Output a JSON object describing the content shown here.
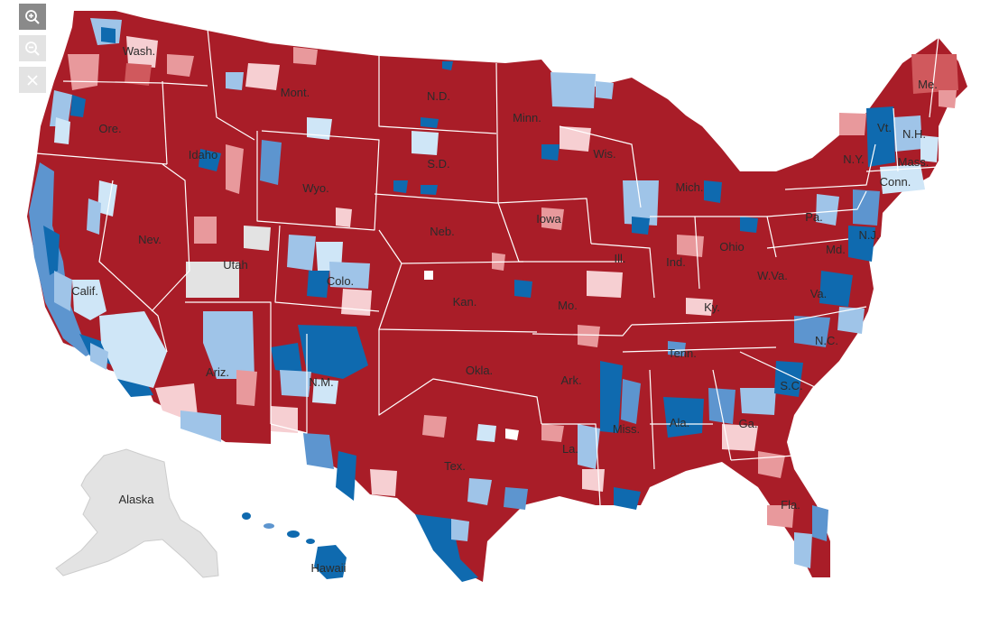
{
  "controls": {
    "zoom_in_icon": "zoom-in-magnifier-plus",
    "zoom_out_icon": "zoom-out-magnifier-minus",
    "reset_icon": "close-x"
  },
  "colors": {
    "strong_republican": "#a91d28",
    "republican": "#d0595d",
    "lean_republican": "#e8999c",
    "slight_republican": "#f6cfd2",
    "slight_democrat": "#cfe6f7",
    "lean_democrat": "#9fc4e8",
    "democrat": "#5d95cf",
    "strong_democrat": "#0f6aaf",
    "no_data": "#e3e3e3",
    "border": "#ffffff"
  },
  "states": {
    "wash": "Wash.",
    "ore": "Ore.",
    "calif": "Calif.",
    "nev": "Nev.",
    "idaho": "Idaho",
    "mont": "Mont.",
    "wyo": "Wyo.",
    "utah": "Utah",
    "colo": "Colo.",
    "ariz": "Ariz.",
    "nm": "N.M.",
    "nd": "N.D.",
    "sd": "S.D.",
    "neb": "Neb.",
    "kan": "Kan.",
    "okla": "Okla.",
    "tex": "Tex.",
    "minn": "Minn.",
    "iowa": "Iowa",
    "mo": "Mo.",
    "ark": "Ark.",
    "la": "La.",
    "wis": "Wis.",
    "ill": "Ill.",
    "mich": "Mich.",
    "ind": "Ind.",
    "ohio": "Ohio",
    "ky": "Ky.",
    "tenn": "Tenn.",
    "miss": "Miss.",
    "ala": "Ala.",
    "ga": "Ga.",
    "fla": "Fla.",
    "sc": "S.C.",
    "nc": "N.C.",
    "va": "Va.",
    "wva": "W.Va.",
    "pa": "Pa.",
    "ny": "N.Y.",
    "nj": "N.J.",
    "md": "Md.",
    "vt": "Vt.",
    "nh": "N.H.",
    "mass": "Mass.",
    "conn": "Conn.",
    "me": "Me.",
    "alaska": "Alaska",
    "hawaii": "Hawaii"
  }
}
